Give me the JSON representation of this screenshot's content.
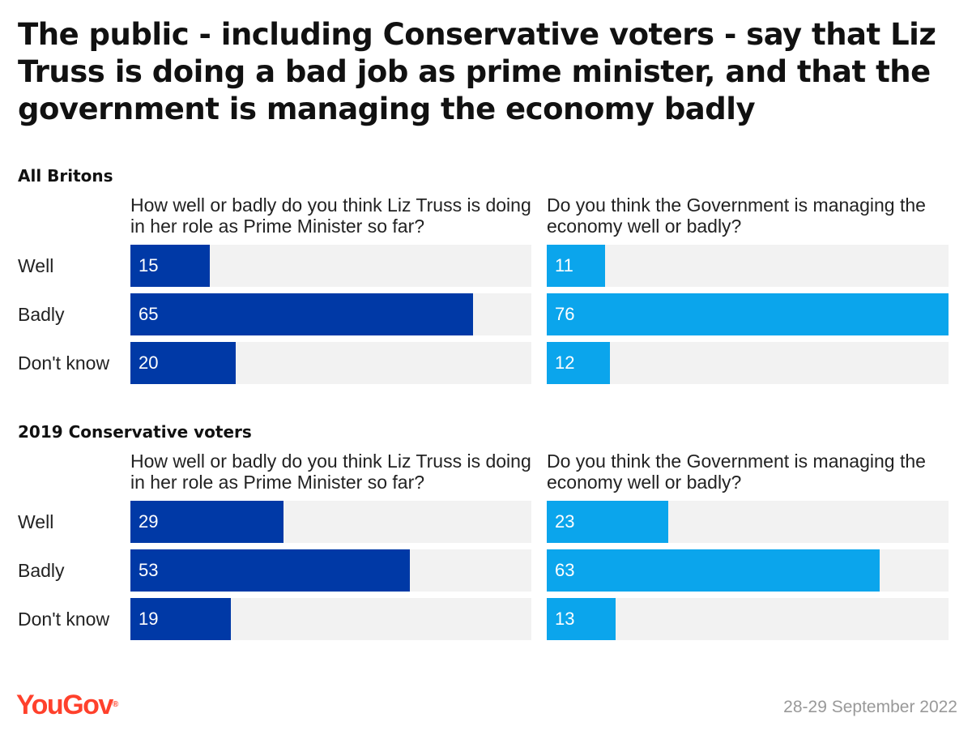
{
  "title": "The public - including Conservative voters - say that Liz Truss is doing a bad job as prime minister, and that the government is managing the economy badly",
  "chart_data": [
    {
      "type": "bar",
      "group": "All Britons",
      "title": "How well or badly do you think Liz Truss is doing in her role as Prime Minister so far?",
      "categories": [
        "Well",
        "Badly",
        "Don't know"
      ],
      "values": [
        15,
        65,
        20
      ],
      "xlim": [
        0,
        76
      ],
      "color": "#0039a6"
    },
    {
      "type": "bar",
      "group": "All Britons",
      "title": "Do you think the Government is managing the economy well or badly?",
      "categories": [
        "Well",
        "Badly",
        "Don't know"
      ],
      "values": [
        11,
        76,
        12
      ],
      "xlim": [
        0,
        76
      ],
      "color": "#0ba5ec"
    },
    {
      "type": "bar",
      "group": "2019 Conservative voters",
      "title": "How well or badly do you think Liz Truss is doing in her role as Prime Minister so far?",
      "categories": [
        "Well",
        "Badly",
        "Don't know"
      ],
      "values": [
        29,
        53,
        19
      ],
      "xlim": [
        0,
        76
      ],
      "color": "#0039a6"
    },
    {
      "type": "bar",
      "group": "2019 Conservative voters",
      "title": "Do you think the Government is managing the economy well or badly?",
      "categories": [
        "Well",
        "Badly",
        "Don't know"
      ],
      "values": [
        23,
        63,
        13
      ],
      "xlim": [
        0,
        76
      ],
      "color": "#0ba5ec"
    }
  ],
  "brand": {
    "name": "YouGov",
    "mark": "®",
    "color": "#ff412c"
  },
  "date": "28-29 September 2022"
}
